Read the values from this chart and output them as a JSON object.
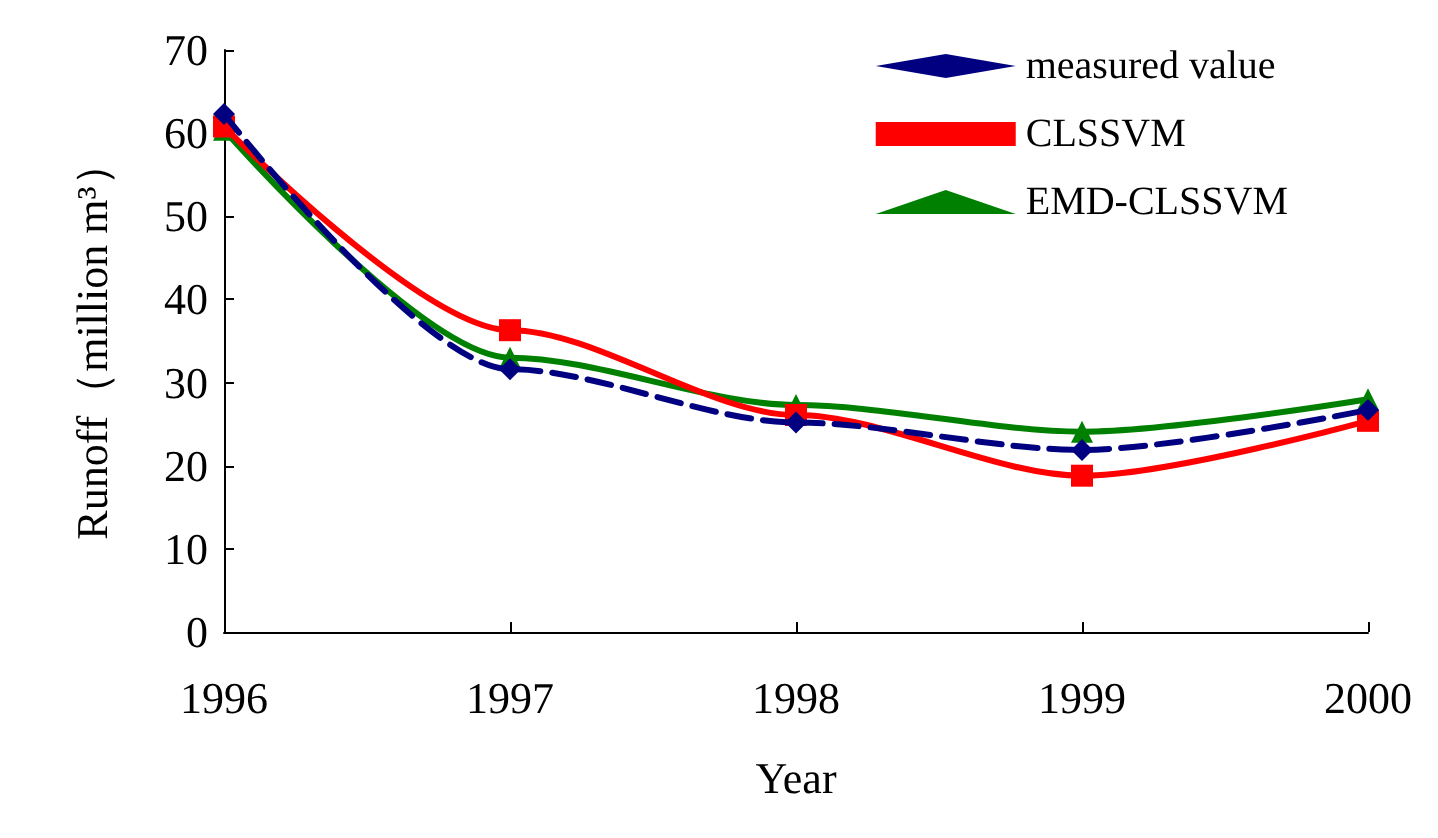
{
  "chart_data": {
    "type": "line",
    "xlabel": "Year",
    "ylabel": "Runoff（million m³）",
    "categories": [
      "1996",
      "1997",
      "1998",
      "1999",
      "2000"
    ],
    "series": [
      {
        "name": "measured value",
        "color": "#000080",
        "marker": "diamond",
        "line_style": "dashed",
        "values": [
          62.3,
          31.6,
          25.2,
          21.9,
          26.7
        ]
      },
      {
        "name": "CLSSVM",
        "color": "#ff0000",
        "marker": "square",
        "line_style": "solid",
        "values": [
          60.8,
          36.3,
          26.1,
          18.8,
          25.4
        ]
      },
      {
        "name": "EMD-CLSSVM",
        "color": "#008000",
        "marker": "triangle",
        "line_style": "solid",
        "values": [
          60.4,
          33.0,
          27.3,
          24.1,
          28.0
        ]
      }
    ],
    "ylim": [
      0,
      70
    ],
    "yticks": [
      0,
      10,
      20,
      30,
      40,
      50,
      60,
      70
    ],
    "grid": false,
    "legend": "top right"
  }
}
